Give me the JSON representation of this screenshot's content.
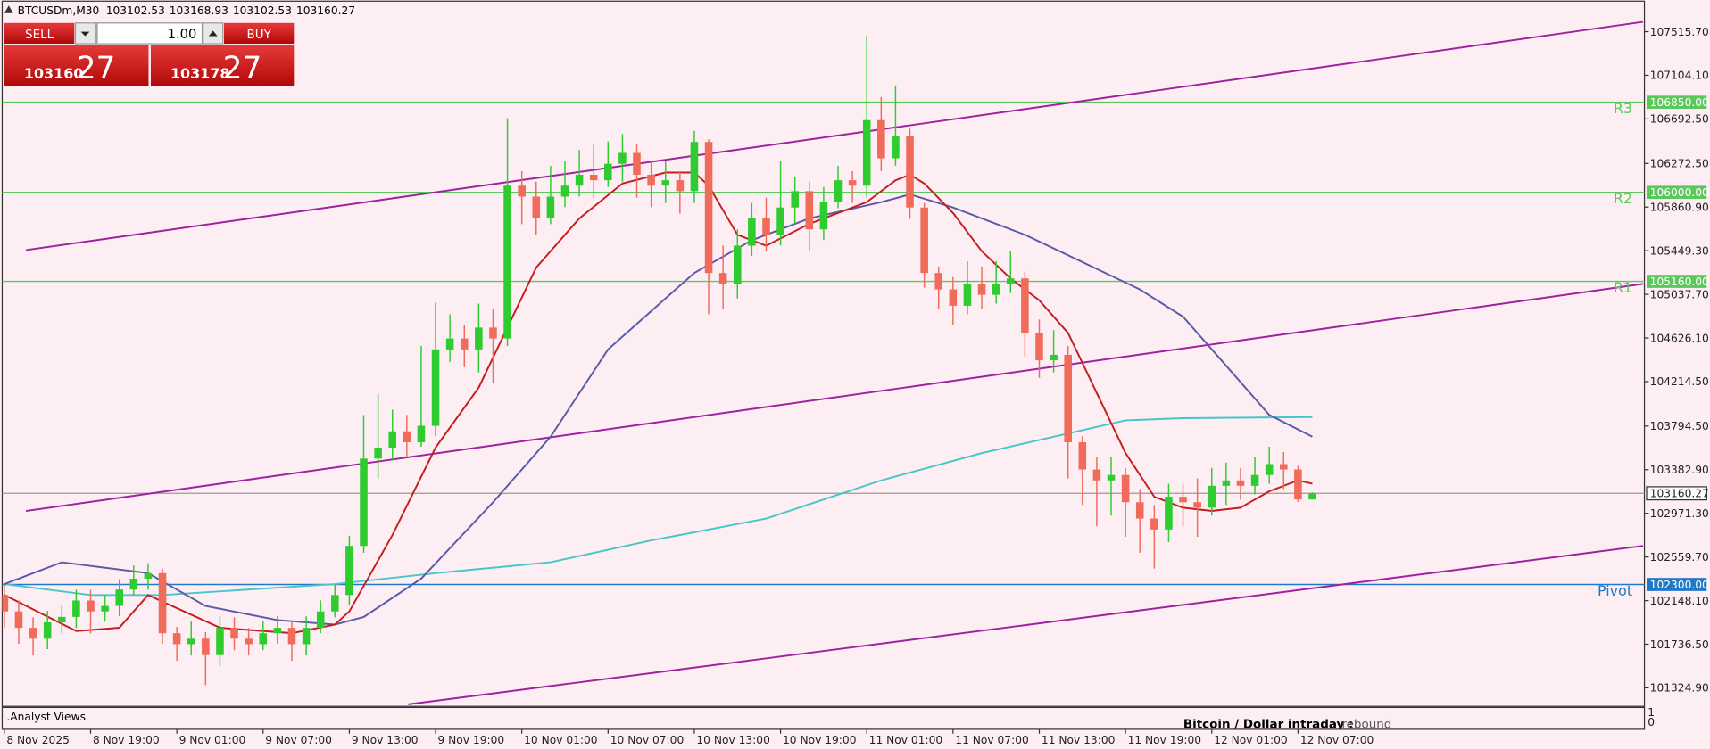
{
  "chart_data": {
    "type": "candlestick",
    "symbol": "BTCUSDm,M30",
    "ohlc": [
      103102.53,
      103168.93,
      103102.53,
      103160.27
    ],
    "xlim": [
      -0.15,
      114.1
    ],
    "ylim": [
      101140,
      107814
    ],
    "xticks": [
      {
        "value": 0,
        "label": "8 Nov 2025"
      },
      {
        "value": 6,
        "label": "8 Nov 19:00"
      },
      {
        "value": 12,
        "label": "9 Nov 01:00"
      },
      {
        "value": 18,
        "label": "9 Nov 07:00"
      },
      {
        "value": 24,
        "label": "9 Nov 13:00"
      },
      {
        "value": 30,
        "label": "9 Nov 19:00"
      },
      {
        "value": 36,
        "label": "10 Nov 01:00"
      },
      {
        "value": 42,
        "label": "10 Nov 07:00"
      },
      {
        "value": 48,
        "label": "10 Nov 13:00"
      },
      {
        "value": 54,
        "label": "10 Nov 19:00"
      },
      {
        "value": 60,
        "label": "11 Nov 01:00"
      },
      {
        "value": 66,
        "label": "11 Nov 07:00"
      },
      {
        "value": 72,
        "label": "11 Nov 13:00"
      },
      {
        "value": 78,
        "label": "11 Nov 19:00"
      },
      {
        "value": 84,
        "label": "12 Nov 01:00"
      },
      {
        "value": 90,
        "label": "12 Nov 07:00"
      }
    ],
    "yticks": [
      {
        "value": 107515.7,
        "label": "107515.70"
      },
      {
        "value": 107104.1,
        "label": "107104.10"
      },
      {
        "value": 106692.5,
        "label": "106692.50"
      },
      {
        "value": 106272.5,
        "label": "106272.50"
      },
      {
        "value": 105860.9,
        "label": "105860.90"
      },
      {
        "value": 105449.3,
        "label": "105449.30"
      },
      {
        "value": 105037.7,
        "label": "105037.70"
      },
      {
        "value": 104626.1,
        "label": "104626.10"
      },
      {
        "value": 104214.5,
        "label": "104214.50"
      },
      {
        "value": 103794.5,
        "label": "103794.50"
      },
      {
        "value": 103382.9,
        "label": "103382.90"
      },
      {
        "value": 102971.3,
        "label": "102971.30"
      },
      {
        "value": 102559.7,
        "label": "102559.70"
      },
      {
        "value": 102148.1,
        "label": "102148.10"
      },
      {
        "value": 101736.5,
        "label": "101736.50"
      },
      {
        "value": 101324.9,
        "label": "101324.90"
      }
    ],
    "up_color": "#2ecc2e",
    "down_color": "#f06b5a",
    "open": [
      102201,
      102046,
      101891,
      101789,
      101943,
      101994,
      102149,
      102046,
      102098,
      102252,
      102355,
      102407,
      101840,
      101737,
      101789,
      101634,
      101891,
      101789,
      101737,
      101840,
      101891,
      101737,
      101891,
      102046,
      102201,
      102664,
      103488,
      103591,
      103745,
      103642,
      103797,
      104518,
      104621,
      104518,
      104724,
      104621,
      106063,
      105960,
      105754,
      105960,
      106063,
      106166,
      106114,
      106269,
      106372,
      106166,
      106063,
      106114,
      106011,
      106475,
      105239,
      105136,
      105497,
      105754,
      105600,
      105857,
      106011,
      105651,
      105908,
      106114,
      106063,
      106681,
      106321,
      106527,
      105857,
      105239,
      105084,
      104930,
      105136,
      105033,
      105136,
      105188,
      104673,
      104415,
      104467,
      103642,
      103385,
      103282,
      103333,
      103076,
      102922,
      102819,
      103128,
      103076,
      103025,
      103231,
      103282,
      103231,
      103333,
      103436,
      103385,
      103102.53
    ],
    "high": [
      102300,
      102150,
      101990,
      102050,
      102100,
      102250,
      102250,
      102200,
      102350,
      102480,
      102500,
      102450,
      101900,
      101950,
      101850,
      102000,
      101990,
      101890,
      101950,
      102000,
      101950,
      102000,
      102150,
      102300,
      102760,
      103900,
      104100,
      103950,
      103900,
      104550,
      104960,
      104850,
      104750,
      104950,
      104900,
      106700,
      106200,
      106100,
      106250,
      106300,
      106400,
      106450,
      106480,
      106550,
      106450,
      106300,
      106300,
      106200,
      106580,
      106500,
      105500,
      105650,
      105900,
      105950,
      106300,
      106150,
      106100,
      106050,
      106250,
      106200,
      107480,
      106900,
      107000,
      106600,
      105900,
      105300,
      105200,
      105350,
      105300,
      105350,
      105450,
      105250,
      104800,
      104700,
      104550,
      103700,
      103500,
      103500,
      103400,
      103200,
      103050,
      103250,
      103250,
      103300,
      103400,
      103450,
      103400,
      103500,
      103600,
      103550,
      103420,
      103168.93
    ],
    "low": [
      101890,
      101740,
      101630,
      101690,
      101840,
      101890,
      101840,
      101950,
      102000,
      102200,
      102250,
      101740,
      101580,
      101630,
      101350,
      101530,
      101680,
      101630,
      101680,
      101740,
      101580,
      101630,
      101840,
      101990,
      102100,
      102600,
      103300,
      103480,
      103500,
      103600,
      103700,
      104400,
      104350,
      104300,
      104200,
      104550,
      105700,
      105600,
      105700,
      105860,
      105960,
      105950,
      106050,
      106100,
      105950,
      105860,
      105900,
      105800,
      105900,
      104850,
      104900,
      105000,
      105400,
      105450,
      105500,
      105700,
      105450,
      105550,
      105850,
      105900,
      105950,
      106200,
      106250,
      105750,
      105100,
      104900,
      104750,
      104850,
      104900,
      104950,
      105050,
      104450,
      104250,
      104300,
      103300,
      103050,
      102850,
      102950,
      102750,
      102600,
      102450,
      102700,
      102850,
      102750,
      102950,
      103050,
      103100,
      103150,
      103250,
      103200,
      103080,
      103102.53
    ],
    "close": [
      102046,
      101891,
      101789,
      101943,
      101994,
      102149,
      102046,
      102098,
      102252,
      102355,
      102407,
      101840,
      101737,
      101789,
      101634,
      101891,
      101789,
      101737,
      101840,
      101891,
      101737,
      101891,
      102046,
      102201,
      102664,
      103488,
      103591,
      103745,
      103642,
      103797,
      104518,
      104621,
      104518,
      104724,
      104621,
      106063,
      105960,
      105754,
      105960,
      106063,
      106166,
      106114,
      106269,
      106372,
      106166,
      106063,
      106114,
      106011,
      106475,
      105239,
      105136,
      105497,
      105754,
      105600,
      105857,
      106011,
      105651,
      105908,
      106114,
      106063,
      106681,
      106321,
      106527,
      105857,
      105239,
      105084,
      104930,
      105136,
      105033,
      105136,
      105188,
      104673,
      104415,
      104467,
      103642,
      103385,
      103282,
      103333,
      103076,
      102922,
      102819,
      103128,
      103076,
      103025,
      103231,
      103282,
      103231,
      103333,
      103436,
      103385,
      103102.53,
      103160.27
    ],
    "lines": [
      {
        "color": "#a020a0",
        "x": [
          1.5,
          114
        ],
        "values": [
          105455,
          107608
        ]
      },
      {
        "color": "#a020a0",
        "x": [
          1.5,
          114
        ],
        "values": [
          102994,
          105136
        ]
      },
      {
        "color": "#a020a0",
        "x": [
          28.1,
          114
        ],
        "values": [
          101170,
          102664
        ]
      },
      {
        "color": "#49c5c8",
        "x": [
          0,
          6,
          11,
          23,
          30,
          38,
          45,
          53,
          61,
          68,
          73,
          78,
          82,
          91
        ],
        "values": [
          102304,
          102201,
          102201,
          102304,
          102407,
          102510,
          102716,
          102922,
          103282,
          103540,
          103694,
          103849,
          103869,
          103880
        ]
      },
      {
        "color": "#5a5aa8",
        "x": [
          0,
          4,
          10,
          14,
          19,
          23,
          25,
          29,
          34,
          38,
          42,
          48,
          52,
          56,
          61,
          63,
          66,
          71,
          75,
          79,
          82,
          85,
          88,
          91
        ],
        "values": [
          102304,
          102510,
          102407,
          102098,
          101964,
          101922,
          101994,
          102355,
          103076,
          103694,
          104518,
          105239,
          105548,
          105754,
          105908,
          105981,
          105857,
          105600,
          105342,
          105084,
          104827,
          104364,
          103900,
          103694
        ]
      },
      {
        "color": "#c41e1e",
        "x": [
          0,
          5,
          8,
          10,
          15,
          20,
          23,
          24,
          27,
          30,
          33,
          35,
          37,
          40,
          43,
          46,
          48,
          49,
          51,
          53,
          56,
          58,
          60,
          62,
          63,
          64,
          66,
          68,
          70,
          72,
          74,
          76,
          78,
          80,
          82,
          84,
          86,
          88,
          90,
          91
        ],
        "values": [
          102201,
          101861,
          101892,
          102201,
          101892,
          101840,
          101922,
          102046,
          102767,
          103591,
          104158,
          104724,
          105290,
          105754,
          106084,
          106187,
          106187,
          106063,
          105600,
          105497,
          105703,
          105806,
          105908,
          106114,
          106166,
          106084,
          105806,
          105445,
          105188,
          104981,
          104673,
          104106,
          103540,
          103128,
          103025,
          102994,
          103025,
          103179,
          103282,
          103251
        ]
      }
    ],
    "levels": [
      {
        "label": "R3",
        "value": 106850,
        "value_label": "106850.00",
        "color": "#5cc85c"
      },
      {
        "label": "R2",
        "value": 106000,
        "value_label": "106000.00",
        "color": "#5cc85c"
      },
      {
        "label": "R1",
        "value": 105160,
        "value_label": "105160.00",
        "color": "#5cc85c"
      },
      {
        "label": "Pivot",
        "value": 102300,
        "value_label": "102300.00",
        "color": "#1f78c8"
      }
    ],
    "current": {
      "value": 103160.27,
      "color": "#9a9a9a"
    }
  },
  "trade_panel": {
    "sell": "SELL",
    "buy": "BUY",
    "volume": "1.00",
    "bid_main": "103160",
    "bid_big": "27",
    "ask_main": "103178",
    "ask_big": "27"
  },
  "subwindow": {
    "title": ".Analyst Views",
    "text": "Bitcoin / Dollar intraday :",
    "value": "rebound",
    "yticks": [
      "1",
      "0"
    ]
  }
}
